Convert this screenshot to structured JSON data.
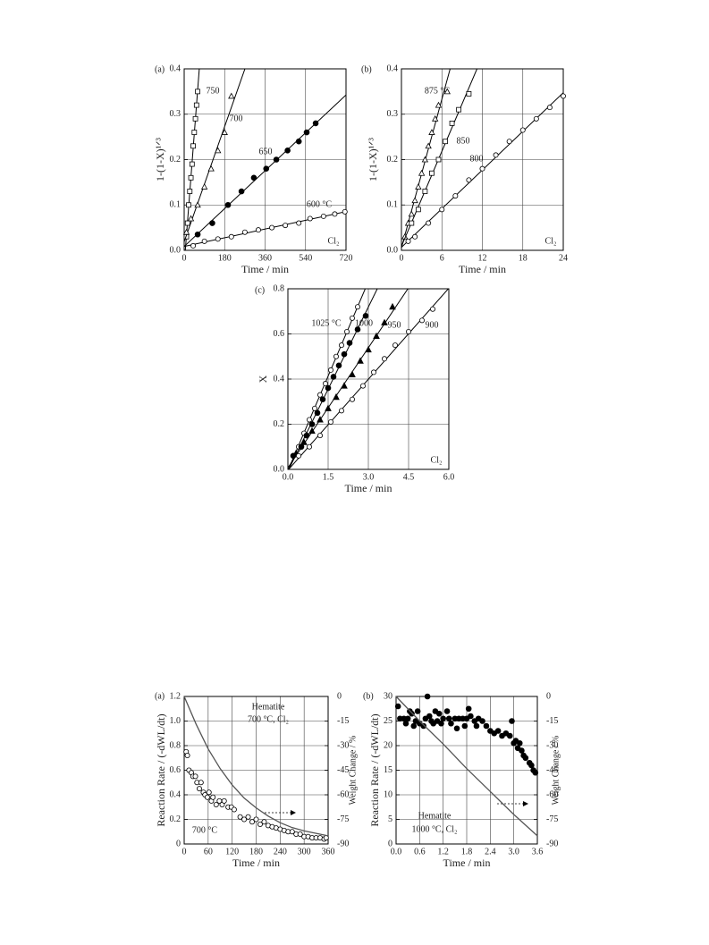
{
  "chart_data": [
    {
      "type": "scatter",
      "panel": "(a)",
      "x_label": "Time / min",
      "y_label": "1-(1-X)¹ᐟ³",
      "annotations": [
        "Cl₂"
      ],
      "xlim": [
        0,
        720
      ],
      "xticks": [
        0,
        180,
        360,
        540,
        720
      ],
      "ylim": [
        0,
        0.4
      ],
      "yticks": [
        {
          "value": 0,
          "label": "0.0"
        },
        0.1,
        0.2,
        0.3,
        0.4
      ],
      "grid": true,
      "fit_lines": true,
      "series": [
        {
          "name": "750",
          "marker": "square-open",
          "color": "#000000",
          "x": [
            10,
            15,
            20,
            25,
            30,
            35,
            40,
            45,
            50,
            55,
            60
          ],
          "values": [
            0.03,
            0.06,
            0.1,
            0.13,
            0.16,
            0.19,
            0.23,
            0.26,
            0.29,
            0.32,
            0.35
          ]
        },
        {
          "name": "700",
          "marker": "triangle-open",
          "color": "#000000",
          "x": [
            10,
            30,
            60,
            90,
            120,
            150,
            180,
            210
          ],
          "values": [
            0.04,
            0.07,
            0.1,
            0.14,
            0.18,
            0.22,
            0.26,
            0.34
          ]
        },
        {
          "name": "650",
          "marker": "circle-filled",
          "color": "#000000",
          "x": [
            60,
            125,
            195,
            255,
            310,
            365,
            410,
            460,
            510,
            545,
            585
          ],
          "values": [
            0.035,
            0.06,
            0.1,
            0.13,
            0.16,
            0.18,
            0.2,
            0.22,
            0.24,
            0.26,
            0.28
          ]
        },
        {
          "name": "600 °C",
          "marker": "circle-open",
          "color": "#000000",
          "x": [
            40,
            90,
            150,
            210,
            270,
            330,
            390,
            450,
            510,
            560,
            620,
            670,
            715
          ],
          "values": [
            0.01,
            0.02,
            0.025,
            0.03,
            0.04,
            0.045,
            0.05,
            0.055,
            0.06,
            0.07,
            0.075,
            0.08,
            0.085
          ]
        }
      ]
    },
    {
      "type": "scatter",
      "panel": "(b)",
      "x_label": "Time / min",
      "y_label": "1-(1-X)¹ᐟ³",
      "annotations": [
        "Cl₂"
      ],
      "xlim": [
        0,
        24
      ],
      "xticks": [
        0,
        6,
        12,
        18,
        24
      ],
      "ylim": [
        0,
        0.4
      ],
      "yticks": [
        {
          "value": 0,
          "label": "0.0"
        },
        0.1,
        0.2,
        0.3,
        0.4
      ],
      "grid": true,
      "fit_lines": true,
      "series": [
        {
          "name": "875 °C",
          "marker": "triangle-open",
          "color": "#000000",
          "x": [
            0.5,
            1,
            1.5,
            2,
            2.5,
            3,
            3.5,
            4,
            4.5,
            5,
            5.5,
            6.8
          ],
          "values": [
            0.03,
            0.06,
            0.08,
            0.11,
            0.14,
            0.17,
            0.2,
            0.23,
            0.26,
            0.29,
            0.32,
            0.35
          ]
        },
        {
          "name": "850",
          "marker": "square-open",
          "color": "#000000",
          "x": [
            1.5,
            2.5,
            3.5,
            4.5,
            5.5,
            6.5,
            7.5,
            8.5,
            10
          ],
          "values": [
            0.06,
            0.09,
            0.13,
            0.17,
            0.2,
            0.24,
            0.28,
            0.31,
            0.345
          ]
        },
        {
          "name": "800",
          "marker": "circle-open",
          "color": "#000000",
          "x": [
            1,
            2,
            4,
            6,
            8,
            10,
            12,
            14,
            16,
            18,
            20,
            22,
            24
          ],
          "values": [
            0.02,
            0.03,
            0.06,
            0.09,
            0.12,
            0.155,
            0.18,
            0.21,
            0.24,
            0.265,
            0.29,
            0.315,
            0.34
          ]
        }
      ]
    },
    {
      "type": "scatter",
      "panel": "(c)",
      "x_label": "Time / min",
      "y_label": "X",
      "annotations": [
        "Cl₂"
      ],
      "xlim": [
        0,
        6
      ],
      "xticks": [
        {
          "value": 0,
          "label": "0.0"
        },
        1.5,
        {
          "value": 3,
          "label": "3.0"
        },
        4.5,
        {
          "value": 6,
          "label": "6.0"
        }
      ],
      "ylim": [
        0,
        0.8
      ],
      "yticks": [
        {
          "value": 0,
          "label": "0.0"
        },
        0.2,
        0.4,
        0.6,
        0.8
      ],
      "grid": true,
      "fit_lines": true,
      "series": [
        {
          "name": "1025 °C",
          "marker": "circle-open",
          "color": "#000000",
          "x": [
            0.2,
            0.4,
            0.6,
            0.8,
            1.0,
            1.2,
            1.4,
            1.6,
            1.8,
            2.0,
            2.2,
            2.4,
            2.6
          ],
          "values": [
            0.06,
            0.1,
            0.16,
            0.22,
            0.27,
            0.33,
            0.38,
            0.44,
            0.5,
            0.55,
            0.61,
            0.67,
            0.72
          ]
        },
        {
          "name": "1000",
          "marker": "circle-filled",
          "color": "#000000",
          "x": [
            0.2,
            0.5,
            0.7,
            0.9,
            1.1,
            1.3,
            1.5,
            1.7,
            1.9,
            2.1,
            2.3,
            2.6,
            2.9
          ],
          "values": [
            0.06,
            0.1,
            0.15,
            0.2,
            0.25,
            0.31,
            0.36,
            0.41,
            0.46,
            0.51,
            0.56,
            0.62,
            0.68
          ]
        },
        {
          "name": "950",
          "marker": "triangle-filled",
          "color": "#000000",
          "x": [
            0.3,
            0.6,
            0.9,
            1.2,
            1.5,
            1.8,
            2.1,
            2.4,
            2.7,
            3.0,
            3.3,
            3.6,
            3.9
          ],
          "values": [
            0.07,
            0.12,
            0.17,
            0.22,
            0.27,
            0.32,
            0.37,
            0.42,
            0.48,
            0.53,
            0.59,
            0.65,
            0.72
          ]
        },
        {
          "name": "900",
          "marker": "circle-open",
          "color": "#000000",
          "x": [
            0.4,
            0.8,
            1.2,
            1.6,
            2.0,
            2.4,
            2.8,
            3.2,
            3.6,
            4.0,
            4.5,
            5.0,
            5.4
          ],
          "values": [
            0.06,
            0.1,
            0.15,
            0.21,
            0.26,
            0.31,
            0.37,
            0.43,
            0.49,
            0.55,
            0.61,
            0.66,
            0.71
          ]
        }
      ]
    },
    {
      "type": "scatter",
      "panel": "(a)",
      "x_label": "Time / min",
      "y_label": "Reaction Rate / (-dWL/dt)",
      "y2_label": "Weight Change / %",
      "annotations": [
        "Hematite",
        "700 °C, Cl₂",
        "700 °C"
      ],
      "xlim": [
        0,
        360
      ],
      "xticks": [
        0,
        60,
        120,
        180,
        240,
        300,
        360
      ],
      "ylim": [
        0,
        1.2
      ],
      "yticks": [
        0,
        0.2,
        0.4,
        0.6,
        0.8,
        {
          "value": 1,
          "label": "1.0"
        },
        1.2
      ],
      "y2lim": [
        -90,
        0
      ],
      "y2ticks": [
        0,
        -15,
        -30,
        -45,
        -60,
        -75,
        -90
      ],
      "grid": true,
      "series": [
        {
          "marker": "circle-open",
          "color": "#000000",
          "x": [
            5,
            8,
            12,
            18,
            22,
            28,
            32,
            38,
            42,
            48,
            52,
            58,
            62,
            68,
            72,
            80,
            88,
            95,
            100,
            110,
            118,
            125,
            140,
            150,
            160,
            170,
            180,
            190,
            200,
            210,
            220,
            230,
            240,
            250,
            260,
            270,
            280,
            290,
            300,
            310,
            320,
            330,
            340,
            350,
            355
          ],
          "values": [
            0.75,
            0.72,
            0.6,
            0.58,
            0.55,
            0.55,
            0.5,
            0.45,
            0.5,
            0.42,
            0.4,
            0.38,
            0.42,
            0.35,
            0.38,
            0.32,
            0.35,
            0.32,
            0.35,
            0.3,
            0.3,
            0.28,
            0.22,
            0.2,
            0.22,
            0.18,
            0.2,
            0.16,
            0.18,
            0.15,
            0.14,
            0.13,
            0.12,
            0.11,
            0.1,
            0.1,
            0.08,
            0.08,
            0.06,
            0.06,
            0.05,
            0.05,
            0.05,
            0.04,
            0.05
          ]
        },
        {
          "marker": "line",
          "axis": "y2",
          "color": "#555555",
          "x": [
            0,
            30,
            60,
            90,
            120,
            150,
            180,
            210,
            240,
            270,
            300,
            330,
            360
          ],
          "values": [
            0,
            -17,
            -32,
            -44,
            -54,
            -62,
            -68,
            -73,
            -77,
            -80,
            -82,
            -83.5,
            -85
          ]
        }
      ]
    },
    {
      "type": "scatter",
      "panel": "(b)",
      "x_label": "Time / min",
      "y_label": "Reaction Rate / (-dWL/dt)",
      "y2_label": "Weight Change / %",
      "annotations": [
        "Hematite",
        "1000 °C, Cl₂"
      ],
      "xlim": [
        0,
        3.6
      ],
      "xticks": [
        {
          "value": 0,
          "label": "0.0"
        },
        0.6,
        1.2,
        1.8,
        2.4,
        {
          "value": 3,
          "label": "3.0"
        },
        3.6
      ],
      "ylim": [
        0,
        30
      ],
      "yticks": [
        0,
        5,
        10,
        15,
        20,
        25,
        30
      ],
      "y2lim": [
        -90,
        0
      ],
      "y2ticks": [
        0,
        -15,
        -30,
        -45,
        -60,
        -75,
        -90
      ],
      "grid": true,
      "series": [
        {
          "marker": "circle-filled",
          "color": "#000000",
          "x": [
            0.05,
            0.1,
            0.2,
            0.25,
            0.3,
            0.35,
            0.4,
            0.45,
            0.5,
            0.55,
            0.6,
            0.7,
            0.75,
            0.8,
            0.85,
            0.9,
            0.95,
            1.0,
            1.05,
            1.1,
            1.15,
            1.2,
            1.3,
            1.35,
            1.4,
            1.5,
            1.55,
            1.6,
            1.7,
            1.75,
            1.8,
            1.85,
            1.9,
            2.0,
            2.05,
            2.1,
            2.2,
            2.3,
            2.4,
            2.5,
            2.6,
            2.7,
            2.8,
            2.9,
            2.95,
            3.0,
            3.05,
            3.1,
            3.15,
            3.2,
            3.25,
            3.3,
            3.4,
            3.45,
            3.5,
            3.55
          ],
          "values": [
            28,
            25.5,
            25.5,
            24.5,
            25.5,
            27,
            26.5,
            24,
            25,
            27,
            24.5,
            24,
            25.5,
            30,
            26,
            25,
            24.5,
            27,
            25,
            26.5,
            24.5,
            25.5,
            27,
            25.5,
            24.5,
            25.5,
            23.5,
            25.5,
            25.5,
            24,
            25.5,
            27.5,
            26,
            25,
            24,
            25.5,
            25,
            24,
            23,
            22.5,
            23,
            22,
            22.5,
            22,
            25,
            20.5,
            21,
            19.5,
            20.5,
            19,
            18,
            17.5,
            16.5,
            16,
            15,
            14.5
          ]
        },
        {
          "marker": "line",
          "axis": "y2",
          "color": "#555555",
          "x": [
            0,
            0.6,
            1.2,
            1.8,
            2.4,
            3.0,
            3.6
          ],
          "values": [
            0,
            -15,
            -29,
            -44,
            -58,
            -72,
            -85
          ]
        }
      ]
    }
  ]
}
